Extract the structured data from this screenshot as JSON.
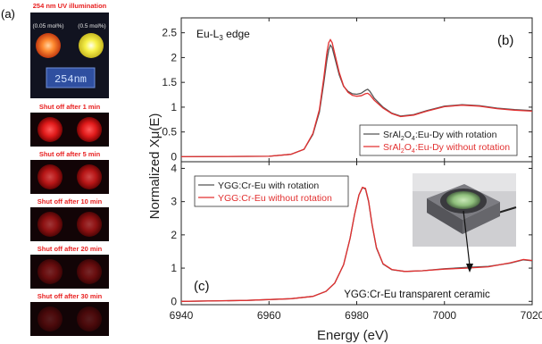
{
  "figure": {
    "label_a": "(a)",
    "label_b": "(b)",
    "label_c": "(c)"
  },
  "photo_panel": {
    "title": "254 nm UV illumination",
    "conc_left": "(0.05 mol%)",
    "conc_right": "(0.5 mol%)",
    "lamp_label": "254nm",
    "glow_colors": {
      "left": "#ff7a2a",
      "right": "#f4ef3a"
    },
    "frames": [
      {
        "caption": "Shut off after 1 min",
        "intensity": 1.0
      },
      {
        "caption": "Shut off after 5 min",
        "intensity": 0.8
      },
      {
        "caption": "Shut off after 10 min",
        "intensity": 0.6
      },
      {
        "caption": "Shut off after 20 min",
        "intensity": 0.42
      },
      {
        "caption": "Shut off after 30 min",
        "intensity": 0.28
      }
    ]
  },
  "chart_data": [
    {
      "panel": "b",
      "type": "line",
      "annotation": "Eu-L₃ edge",
      "annotation_main": "Eu-L",
      "annotation_sub": "3",
      "annotation_tail": " edge",
      "ylabel": "Normalized Xμ(E)",
      "ylim": [
        -0.1,
        2.8
      ],
      "yticks": [
        0,
        0.5,
        1,
        1.5,
        2,
        2.5
      ],
      "ytick_labels": [
        "0",
        "0.5",
        "1",
        "1.5",
        "2",
        "2.5"
      ],
      "legend_position": "bottom-right",
      "series": [
        {
          "name": "SrAl₂O₄:Eu-Dy with rotation",
          "name_parts": [
            "SrAl",
            "2",
            "O",
            "4",
            ":Eu-Dy with rotation"
          ],
          "color": "#555555",
          "x": [
            6940,
            6960,
            6965,
            6968,
            6970,
            6971.5,
            6972.5,
            6973.2,
            6973.6,
            6974,
            6974.4,
            6975,
            6976,
            6977,
            6978,
            6979,
            6980,
            6981,
            6982,
            6982.5,
            6983,
            6984,
            6986,
            6988,
            6990,
            6993,
            6996,
            7000,
            7004,
            7008,
            7012,
            7016,
            7020
          ],
          "y": [
            0,
            0.01,
            0.05,
            0.15,
            0.45,
            0.9,
            1.5,
            1.95,
            2.15,
            2.25,
            2.2,
            2.0,
            1.65,
            1.42,
            1.32,
            1.27,
            1.26,
            1.28,
            1.34,
            1.36,
            1.32,
            1.18,
            1.0,
            0.88,
            0.82,
            0.85,
            0.93,
            1.02,
            1.05,
            1.03,
            0.98,
            0.95,
            0.93
          ]
        },
        {
          "name": "SrAl₂O₄:Eu-Dy without rotation",
          "name_parts": [
            "SrAl",
            "2",
            "O",
            "4",
            ":Eu-Dy without rotation"
          ],
          "color": "#e23030",
          "x": [
            6940,
            6960,
            6965,
            6968,
            6970,
            6971.5,
            6972.5,
            6973.2,
            6973.6,
            6974,
            6974.4,
            6975,
            6976,
            6977,
            6978,
            6979,
            6980,
            6981,
            6982,
            6982.5,
            6983,
            6984,
            6986,
            6988,
            6990,
            6993,
            6996,
            7000,
            7004,
            7008,
            7012,
            7016,
            7020
          ],
          "y": [
            0,
            0.01,
            0.05,
            0.15,
            0.47,
            0.95,
            1.6,
            2.1,
            2.3,
            2.36,
            2.3,
            2.08,
            1.7,
            1.43,
            1.3,
            1.24,
            1.22,
            1.23,
            1.27,
            1.28,
            1.25,
            1.14,
            0.98,
            0.87,
            0.81,
            0.84,
            0.92,
            1.01,
            1.04,
            1.02,
            0.97,
            0.94,
            0.92
          ]
        }
      ]
    },
    {
      "panel": "c",
      "type": "line",
      "xlabel": "Energy (eV)",
      "xlim": [
        6940,
        7020
      ],
      "xticks": [
        6940,
        6960,
        6980,
        7000,
        7020
      ],
      "xtick_labels": [
        "6940",
        "6960",
        "6980",
        "7000",
        "7020"
      ],
      "ylim": [
        -0.1,
        4.2
      ],
      "yticks": [
        0,
        1,
        2,
        3,
        4
      ],
      "ytick_labels": [
        "0",
        "1",
        "2",
        "3",
        "4"
      ],
      "legend_position": "top-left",
      "annotation": "YGG:Cr-Eu transparent ceramic",
      "series": [
        {
          "name": "YGG:Cr-Eu with rotation",
          "color": "#555555",
          "x": [
            6940,
            6955,
            6965,
            6970,
            6973,
            6975,
            6977,
            6978.5,
            6979.5,
            6980.5,
            6981.3,
            6982,
            6982.7,
            6983.5,
            6984.5,
            6986,
            6988,
            6991,
            6995,
            7000,
            7005,
            7010,
            7015,
            7018,
            7020
          ],
          "y": [
            0,
            0.03,
            0.08,
            0.15,
            0.3,
            0.55,
            1.1,
            1.9,
            2.6,
            3.2,
            3.42,
            3.38,
            3.0,
            2.3,
            1.6,
            1.12,
            0.95,
            0.9,
            0.92,
            0.98,
            1.02,
            1.05,
            1.15,
            1.25,
            1.22
          ]
        },
        {
          "name": "YGG:Cr-Eu without rotation",
          "color": "#e23030",
          "x": [
            6940,
            6955,
            6965,
            6970,
            6973,
            6975,
            6977,
            6978.5,
            6979.5,
            6980.5,
            6981.3,
            6982,
            6982.7,
            6983.5,
            6984.5,
            6986,
            6988,
            6991,
            6995,
            7000,
            7005,
            7010,
            7015,
            7018,
            7020
          ],
          "y": [
            0,
            0.03,
            0.08,
            0.15,
            0.3,
            0.55,
            1.1,
            1.9,
            2.6,
            3.2,
            3.43,
            3.4,
            3.02,
            2.32,
            1.62,
            1.13,
            0.96,
            0.9,
            0.92,
            0.97,
            1.0,
            1.04,
            1.16,
            1.26,
            1.23
          ]
        }
      ]
    }
  ]
}
